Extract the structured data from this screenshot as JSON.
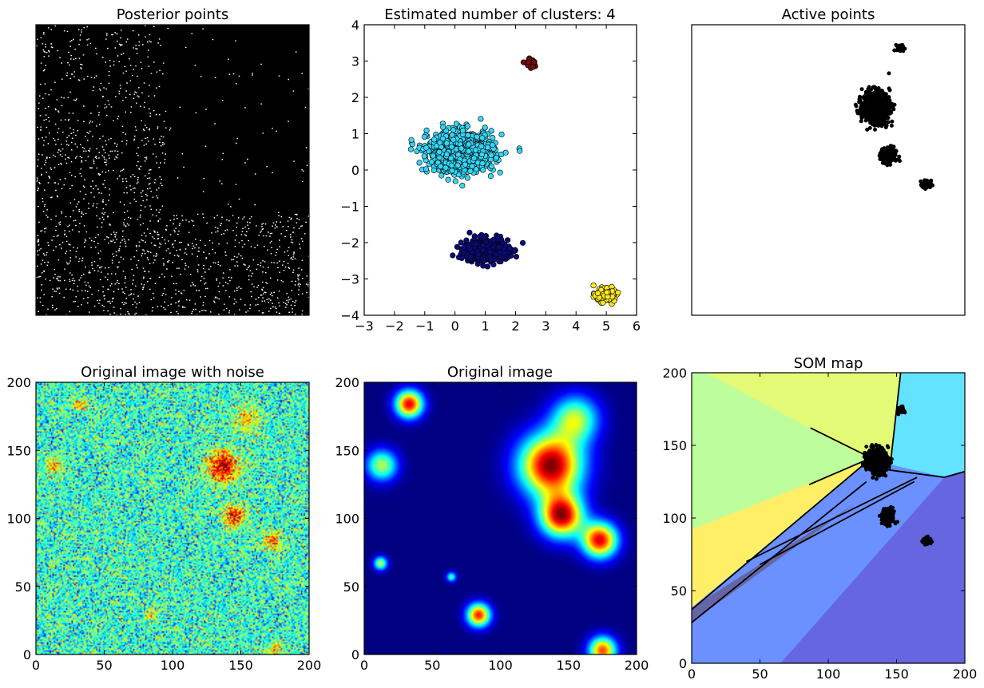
{
  "colors": {
    "jet_dark": "#00007f",
    "jet_blue": "#0000ff",
    "jet_cyan": "#00ffff",
    "jet_yellow": "#ffff00",
    "jet_red": "#ff0000",
    "jet_darkred": "#7f0000",
    "cluster_cyan": "#35d6f5",
    "cluster_navy": "#0a0a78",
    "cluster_gold": "#ffe81a",
    "cluster_maroon": "#7a0a0a"
  },
  "chart_data": [
    {
      "type": "scatter",
      "title": "Posterior points",
      "axes_visible": false,
      "description": "dense black points covering the full square, darker upper-right block",
      "x_range": [
        0,
        200
      ],
      "y_range": [
        0,
        200
      ],
      "point_color": "#000000"
    },
    {
      "type": "scatter",
      "title": "Estimated number of clusters: 4",
      "xlim": [
        -3,
        6
      ],
      "ylim": [
        -4,
        4
      ],
      "x_ticks": [
        "−3",
        "−2",
        "−1",
        "0",
        "1",
        "2",
        "3",
        "4",
        "5",
        "6"
      ],
      "y_ticks": [
        "−4",
        "−3",
        "−2",
        "−1",
        "0",
        "1",
        "2",
        "3",
        "4"
      ],
      "series": [
        {
          "color": "#35d6f5",
          "center": [
            0.2,
            0.5
          ],
          "spread": [
            1.2,
            0.55
          ],
          "count": 900
        },
        {
          "color": "#0a0a78",
          "center": [
            1.05,
            -2.2
          ],
          "spread": [
            0.8,
            0.32
          ],
          "count": 450
        },
        {
          "color": "#ffe81a",
          "center": [
            4.95,
            -3.45
          ],
          "spread": [
            0.35,
            0.17
          ],
          "count": 150
        },
        {
          "color": "#7a0a0a",
          "center": [
            2.5,
            2.95
          ],
          "spread": [
            0.22,
            0.14
          ],
          "count": 28
        }
      ]
    },
    {
      "type": "scatter",
      "title": "Active points",
      "axes_visible": false,
      "x_range": [
        0,
        200
      ],
      "y_range": [
        0,
        200
      ],
      "clusters": [
        {
          "center": [
            135,
            143
          ],
          "spread": [
            9,
            10
          ],
          "count": 700
        },
        {
          "center": [
            144,
            110
          ],
          "spread": [
            5,
            5
          ],
          "count": 250
        },
        {
          "center": [
            172,
            90
          ],
          "spread": [
            3,
            2.5
          ],
          "count": 80
        },
        {
          "center": [
            153,
            184
          ],
          "spread": [
            2.5,
            2
          ],
          "count": 40
        }
      ]
    },
    {
      "type": "heatmap",
      "title": "Original image with noise",
      "xlim": [
        0,
        200
      ],
      "ylim": [
        0,
        200
      ],
      "x_ticks": [
        "0",
        "50",
        "100",
        "150",
        "200"
      ],
      "y_ticks": [
        "0",
        "50",
        "100",
        "150",
        "200"
      ],
      "colormap": "jet",
      "sources": [
        {
          "x": 137,
          "y": 138,
          "sigma": 8,
          "amp": 1.0
        },
        {
          "x": 145,
          "y": 102,
          "sigma": 6,
          "amp": 0.75
        },
        {
          "x": 173,
          "y": 84,
          "sigma": 5,
          "amp": 0.65
        },
        {
          "x": 155,
          "y": 173,
          "sigma": 7,
          "amp": 0.45
        },
        {
          "x": 33,
          "y": 184,
          "sigma": 4,
          "amp": 0.45
        },
        {
          "x": 13,
          "y": 139,
          "sigma": 5,
          "amp": 0.45
        },
        {
          "x": 84,
          "y": 29,
          "sigma": 3,
          "amp": 0.45
        },
        {
          "x": 12,
          "y": 67,
          "sigma": 2,
          "amp": 0.3
        },
        {
          "x": 175,
          "y": 3,
          "sigma": 4,
          "amp": 0.5
        },
        {
          "x": 64,
          "y": 57,
          "sigma": 1.5,
          "amp": 0.15
        }
      ]
    },
    {
      "type": "heatmap",
      "title": "Original image",
      "xlim": [
        0,
        200
      ],
      "ylim": [
        0,
        200
      ],
      "x_ticks": [
        "0",
        "50",
        "100",
        "150",
        "200"
      ],
      "y_ticks": [
        "0",
        "50",
        "100",
        "150",
        "200"
      ],
      "colormap": "jet",
      "sources": [
        {
          "x": 137,
          "y": 139,
          "r": 16,
          "amp": 1.0
        },
        {
          "x": 145,
          "y": 102,
          "r": 11,
          "amp": 0.95
        },
        {
          "x": 173,
          "y": 84,
          "r": 9,
          "amp": 0.9
        },
        {
          "x": 155,
          "y": 173,
          "r": 12,
          "amp": 0.55
        },
        {
          "x": 33,
          "y": 184,
          "r": 7,
          "amp": 0.9
        },
        {
          "x": 13,
          "y": 139,
          "r": 8,
          "amp": 0.55
        },
        {
          "x": 84,
          "y": 29,
          "r": 6,
          "amp": 0.85
        },
        {
          "x": 12,
          "y": 67,
          "r": 3.5,
          "amp": 0.55
        },
        {
          "x": 175,
          "y": 3,
          "r": 7,
          "amp": 0.8
        },
        {
          "x": 64,
          "y": 57,
          "r": 2.5,
          "amp": 0.45
        }
      ]
    },
    {
      "type": "scatter",
      "title": "SOM map",
      "xlim": [
        0,
        200
      ],
      "ylim": [
        0,
        200
      ],
      "x_ticks": [
        "0",
        "50",
        "100",
        "150",
        "200"
      ],
      "y_ticks": [
        "0",
        "50",
        "100",
        "150",
        "200"
      ],
      "regions": [
        {
          "color": "#e2fa76",
          "points": [
            [
              10,
              200
            ],
            [
              153,
              200
            ],
            [
              145,
              133
            ],
            [
              0,
              200
            ]
          ]
        },
        {
          "color": "#bdfd9c",
          "points": [
            [
              0,
              200
            ],
            [
              10,
              200
            ],
            [
              130,
              140
            ],
            [
              0,
              92
            ]
          ]
        },
        {
          "color": "#63e3ff",
          "points": [
            [
              153,
              200
            ],
            [
              200,
              200
            ],
            [
              200,
              132
            ],
            [
              185,
              128
            ],
            [
              145,
              133
            ]
          ]
        },
        {
          "color": "#ffef66",
          "points": [
            [
              0,
              92
            ],
            [
              130,
              140
            ],
            [
              0,
              38
            ]
          ]
        },
        {
          "color": "#6a91ff",
          "points": [
            [
              0,
              38
            ],
            [
              130,
              140
            ],
            [
              185,
              128
            ],
            [
              0,
              0
            ]
          ]
        },
        {
          "color": "#6666e0",
          "points": [
            [
              200,
              132
            ],
            [
              185,
              128
            ],
            [
              65,
              0
            ],
            [
              200,
              0
            ]
          ]
        },
        {
          "color": "#6666a6",
          "points": [
            [
              0,
              28
            ],
            [
              120,
              110
            ],
            [
              0,
              38
            ]
          ]
        },
        {
          "color": "#6a91ff",
          "points": [
            [
              0,
              0
            ],
            [
              0,
              28
            ],
            [
              120,
              110
            ],
            [
              185,
              128
            ],
            [
              65,
              0
            ]
          ]
        }
      ],
      "lines": [
        [
          [
            0,
            37
          ],
          [
            130,
            140
          ]
        ],
        [
          [
            0,
            28
          ],
          [
            128,
            125
          ]
        ],
        [
          [
            50,
            68
          ],
          [
            163,
            125
          ]
        ],
        [
          [
            40,
            70
          ],
          [
            165,
            128
          ]
        ],
        [
          [
            87,
            162
          ],
          [
            130,
            142
          ]
        ],
        [
          [
            86,
            123
          ],
          [
            128,
            140
          ]
        ],
        [
          [
            153,
            200
          ],
          [
            145,
            133
          ]
        ],
        [
          [
            145,
            133
          ],
          [
            185,
            128
          ]
        ],
        [
          [
            185,
            128
          ],
          [
            200,
            132
          ]
        ],
        [
          [
            130,
            140
          ],
          [
            145,
            133
          ]
        ]
      ],
      "clusters": [
        {
          "center": [
            136,
            139
          ],
          "spread": [
            7,
            8
          ],
          "count": 500
        },
        {
          "center": [
            144,
            101
          ],
          "spread": [
            4,
            5
          ],
          "count": 220
        },
        {
          "center": [
            172,
            84
          ],
          "spread": [
            2.5,
            2.5
          ],
          "count": 70
        },
        {
          "center": [
            153,
            174
          ],
          "spread": [
            2,
            2.5
          ],
          "count": 35
        }
      ]
    }
  ]
}
